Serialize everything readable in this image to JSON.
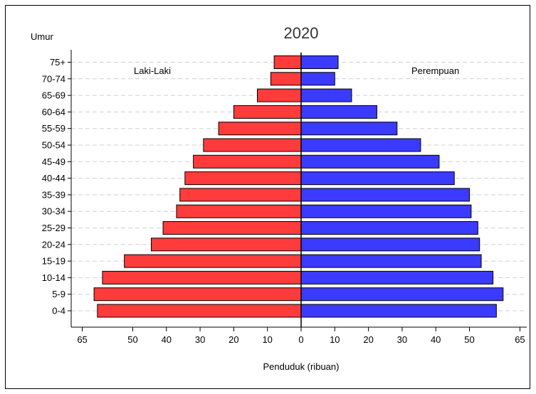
{
  "chart_data": {
    "type": "bar",
    "orientation": "horizontal-pyramid",
    "title": "2020",
    "ylabel": "Umur",
    "xlabel": "Penduduk (ribuan)",
    "left_series_label": "Laki-Laki",
    "right_series_label": "Perempuan",
    "categories": [
      "75+",
      "70-74",
      "65-69",
      "60-64",
      "55-59",
      "50-54",
      "45-49",
      "40-44",
      "35-39",
      "30-34",
      "25-29",
      "20-24",
      "15-19",
      "10-14",
      "5-9",
      "0-4"
    ],
    "series": [
      {
        "name": "Laki-Laki",
        "color": "#ff3b3b",
        "values": [
          8,
          9,
          13,
          20,
          24.5,
          29,
          32,
          34.5,
          36,
          37,
          41,
          44.5,
          52.5,
          59,
          61.5,
          60.5
        ]
      },
      {
        "name": "Perempuan",
        "color": "#3b3bff",
        "values": [
          11,
          10,
          15,
          22.5,
          28.5,
          35.5,
          41,
          45.5,
          50,
          50.5,
          52.5,
          53,
          53.5,
          57,
          60,
          58
        ]
      }
    ],
    "xticks": [
      65,
      50,
      40,
      30,
      20,
      10,
      0,
      10,
      20,
      30,
      40,
      50,
      65
    ],
    "xlim": [
      -65,
      65
    ],
    "grid": "horizontal dashed"
  }
}
